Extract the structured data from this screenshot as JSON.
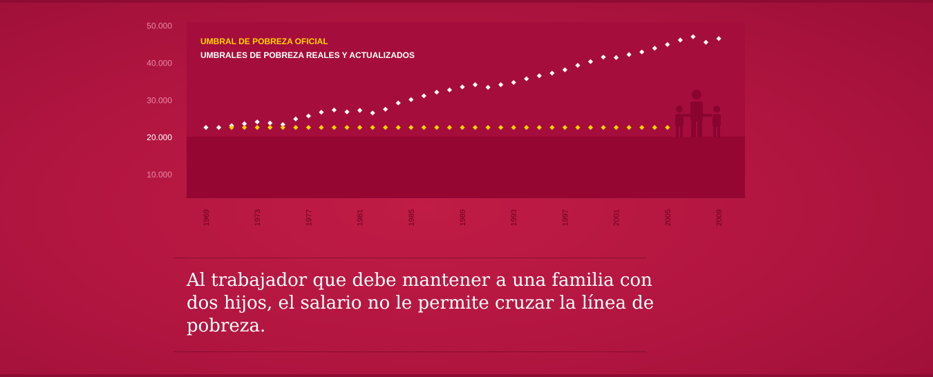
{
  "caption": "Al trabajador que debe mantener a una familia con dos hijos, el salario no le permite cruzar la línea de pobreza.",
  "chart_data": {
    "type": "scatter",
    "title": "",
    "xlabel": "",
    "ylabel": "",
    "ylim": [
      0,
      50000
    ],
    "xlim": [
      1969,
      2009
    ],
    "x_ticks": [
      "1969",
      "1973",
      "1977",
      "1981",
      "1985",
      "1989",
      "1993",
      "1997",
      "2001",
      "2005",
      "2009"
    ],
    "y_ticks": [
      "50.000",
      "40.000",
      "30.000",
      "20.000",
      "10.000"
    ],
    "y_tick_values": [
      50000,
      40000,
      30000,
      20000,
      10000
    ],
    "poverty_band_upper": 20000,
    "legend_placement": "top-left",
    "series": [
      {
        "name": "UMBRALES DE POBREZA REALES Y ACTUALIZADOS",
        "color": "#ffffff",
        "x": [
          1969,
          1970,
          1971,
          1972,
          1973,
          1974,
          1975,
          1976,
          1977,
          1978,
          1979,
          1980,
          1981,
          1982,
          1983,
          1984,
          1985,
          1986,
          1987,
          1988,
          1989,
          1990,
          1991,
          1992,
          1993,
          1994,
          1995,
          1996,
          1997,
          1998,
          1999,
          2000,
          2001,
          2002,
          2003,
          2004,
          2005,
          2006,
          2007,
          2008,
          2009
        ],
        "values": [
          22700,
          22700,
          23200,
          23700,
          24200,
          23900,
          23500,
          25000,
          25800,
          26800,
          27400,
          26900,
          27300,
          26600,
          27600,
          29300,
          30200,
          31200,
          32200,
          32800,
          33600,
          34200,
          33500,
          34200,
          34800,
          35800,
          36600,
          37300,
          38200,
          39400,
          40400,
          41600,
          41500,
          42300,
          43000,
          44000,
          45000,
          46200,
          47100,
          45600,
          46600
        ]
      },
      {
        "name": "UMBRAL DE POBREZA OFICIAL",
        "color": "#ffd400",
        "x": [
          1971,
          1972,
          1973,
          1974,
          1975,
          1976,
          1977,
          1978,
          1979,
          1980,
          1981,
          1982,
          1983,
          1984,
          1985,
          1986,
          1987,
          1988,
          1989,
          1990,
          1991,
          1992,
          1993,
          1994,
          1995,
          1996,
          1997,
          1998,
          1999,
          2000,
          2001,
          2002,
          2003,
          2004,
          2005
        ],
        "values": [
          22700,
          22700,
          22700,
          22700,
          22700,
          22700,
          22700,
          22700,
          22700,
          22700,
          22700,
          22700,
          22700,
          22700,
          22700,
          22700,
          22700,
          22700,
          22700,
          22700,
          22700,
          22700,
          22700,
          22700,
          22700,
          22700,
          22700,
          22700,
          22700,
          22700,
          22700,
          22700,
          22700,
          22700,
          22700
        ]
      }
    ],
    "colors": {
      "plot_background": "#a50d3c",
      "poverty_band": "#950633",
      "tick_text_light": "#e889a6",
      "tick_text_dark": "#6e0020",
      "family_icon": "#8a0430"
    }
  }
}
